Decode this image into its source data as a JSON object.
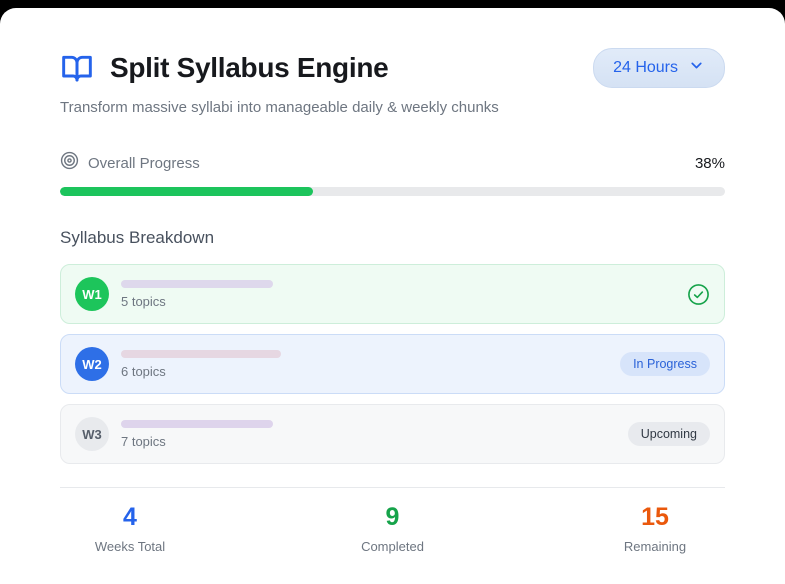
{
  "header": {
    "title": "Split Syllabus Engine",
    "subtitle": "Transform massive syllabi into manageable daily & weekly chunks",
    "icon": "book-open-icon",
    "time_filter": {
      "label": "24 Hours",
      "icon": "chevron-down-icon"
    }
  },
  "progress": {
    "icon": "target-icon",
    "label": "Overall Progress",
    "percent": 38,
    "percent_label": "38%"
  },
  "breakdown": {
    "heading": "Syllabus Breakdown",
    "weeks": [
      {
        "id": "W1",
        "topics": "5 topics",
        "status_icon": "check-circle-icon"
      },
      {
        "id": "W2",
        "topics": "6 topics",
        "status": "In Progress"
      },
      {
        "id": "W3",
        "topics": "7 topics",
        "status": "Upcoming"
      }
    ]
  },
  "stats": [
    {
      "value": "4",
      "label": "Weeks Total",
      "color": "#2563eb"
    },
    {
      "value": "9",
      "label": "Completed",
      "color": "#16a34a"
    },
    {
      "value": "15",
      "label": "Remaining",
      "color": "#ea580c"
    }
  ],
  "colors": {
    "accent_blue": "#2563eb",
    "progress_green": "#1cc45c",
    "week1_green": "#1dc55b",
    "week2_blue": "#2e6fe7",
    "week3_gray": "#e8eaed",
    "badge_inprogress_bg": "#d7e4fa",
    "badge_upcoming_bg": "#e8eaee"
  }
}
